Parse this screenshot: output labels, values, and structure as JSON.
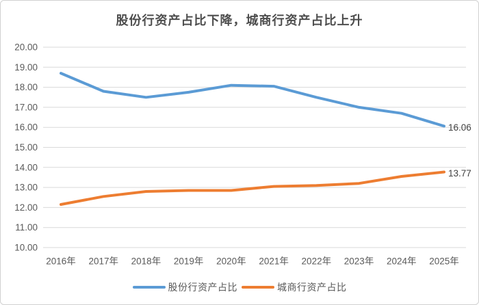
{
  "chart_data": {
    "type": "line",
    "title": "股份行资产占比下降，城商行资产占比上升",
    "categories": [
      "2016年",
      "2017年",
      "2018年",
      "2019年",
      "2020年",
      "2021年",
      "2022年",
      "2023年",
      "2024年",
      "2025年"
    ],
    "series": [
      {
        "name": "股份行资产占比",
        "color": "#5B9BD5",
        "values": [
          18.7,
          17.8,
          17.5,
          17.75,
          18.1,
          18.05,
          17.5,
          17.0,
          16.7,
          16.06
        ],
        "end_label": "16.06"
      },
      {
        "name": "城商行资产占比",
        "color": "#ED7D31",
        "values": [
          12.15,
          12.55,
          12.8,
          12.85,
          12.85,
          13.05,
          13.1,
          13.2,
          13.55,
          13.77
        ],
        "end_label": "13.77"
      }
    ],
    "ylim": [
      10,
      20
    ],
    "yticks": [
      "20.00",
      "19.00",
      "18.00",
      "17.00",
      "16.00",
      "15.00",
      "14.00",
      "13.00",
      "12.00",
      "11.00",
      "10.00"
    ],
    "grid": true,
    "legend_position": "bottom",
    "colors": {
      "gridline": "#d9d9d9",
      "axis_text": "#595959",
      "end_label_text": "#404040",
      "title_text": "#4d4d4d"
    }
  }
}
